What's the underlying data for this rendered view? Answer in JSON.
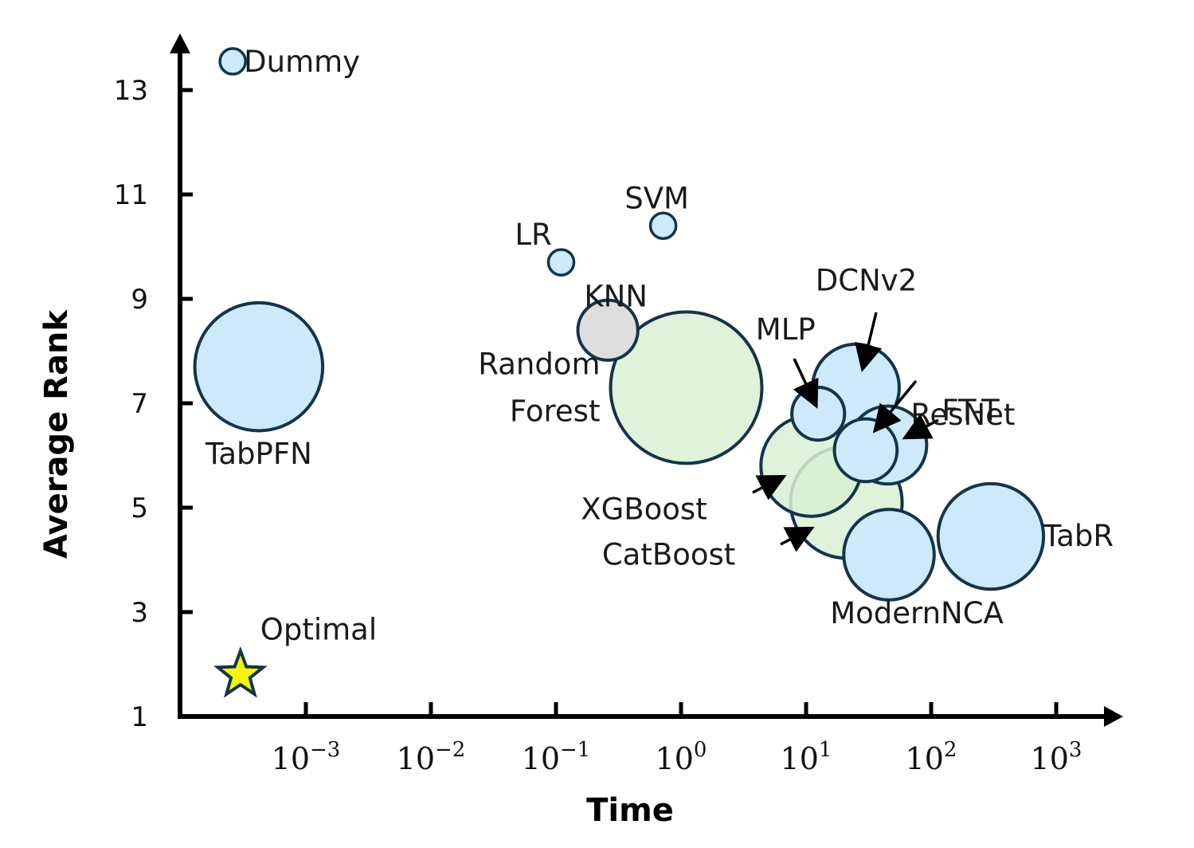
{
  "chart_data": {
    "type": "scatter",
    "xlabel": "Time",
    "ylabel": "Average Rank",
    "x_scale": "log",
    "x_ticks": [
      {
        "base": "10",
        "exp": "−3",
        "value": 0.001
      },
      {
        "base": "10",
        "exp": "−2",
        "value": 0.01
      },
      {
        "base": "10",
        "exp": "−1",
        "value": 0.1
      },
      {
        "base": "10",
        "exp": "0",
        "value": 1
      },
      {
        "base": "10",
        "exp": "1",
        "value": 10
      },
      {
        "base": "10",
        "exp": "2",
        "value": 100
      },
      {
        "base": "10",
        "exp": "3",
        "value": 1000
      }
    ],
    "y_ticks": [
      "1",
      "3",
      "5",
      "7",
      "9",
      "11",
      "13"
    ],
    "ylim": [
      1,
      13.6
    ],
    "xlim": [
      0.0001,
      10000
    ],
    "colors": {
      "deep": "#cdeafa",
      "tree": "#d9f0d3",
      "classic": "#dedede",
      "outline": "#14344a",
      "optimal": "#f5f50a"
    },
    "points": [
      {
        "name": "Dummy",
        "x": 0.00026,
        "y": 13.55,
        "size": 0.04,
        "group": "deep",
        "labels": [
          "Dummy"
        ]
      },
      {
        "name": "TabPFN",
        "x": 0.00042,
        "y": 7.7,
        "size": 1.0,
        "group": "deep",
        "labels": [
          "TabPFN"
        ]
      },
      {
        "name": "LR",
        "x": 0.11,
        "y": 9.7,
        "size": 0.04,
        "group": "deep",
        "labels": [
          "LR"
        ]
      },
      {
        "name": "SVM",
        "x": 0.72,
        "y": 10.4,
        "size": 0.04,
        "group": "deep",
        "labels": [
          "SVM"
        ]
      },
      {
        "name": "KNN",
        "x": 0.26,
        "y": 8.4,
        "size": 0.22,
        "group": "classic",
        "labels": [
          "KNN"
        ]
      },
      {
        "name": "Random Forest",
        "x": 1.1,
        "y": 7.3,
        "size": 1.4,
        "group": "tree",
        "labels": [
          "Random",
          "Forest"
        ]
      },
      {
        "name": "MLP",
        "x": 12.5,
        "y": 6.8,
        "size": 0.17,
        "group": "deep",
        "labels": [
          "MLP"
        ]
      },
      {
        "name": "DCNv2",
        "x": 25,
        "y": 7.3,
        "size": 0.46,
        "group": "deep",
        "labels": [
          "DCNv2"
        ]
      },
      {
        "name": "ResNet",
        "x": 30,
        "y": 6.1,
        "size": 0.24,
        "group": "deep",
        "labels": [
          "ResNet"
        ]
      },
      {
        "name": "FT-T",
        "x": 45,
        "y": 6.2,
        "size": 0.37,
        "group": "deep",
        "labels": [
          "FT-T"
        ]
      },
      {
        "name": "XGBoost",
        "x": 11,
        "y": 5.8,
        "size": 0.62,
        "group": "tree",
        "labels": [
          "XGBoost"
        ]
      },
      {
        "name": "CatBoost",
        "x": 21,
        "y": 5.1,
        "size": 0.76,
        "group": "tree",
        "labels": [
          "CatBoost"
        ]
      },
      {
        "name": "ModernNCA",
        "x": 46,
        "y": 4.1,
        "size": 0.5,
        "group": "deep",
        "labels": [
          "ModernNCA"
        ]
      },
      {
        "name": "TabR",
        "x": 300,
        "y": 4.45,
        "size": 0.68,
        "group": "deep",
        "labels": [
          "TabR"
        ]
      },
      {
        "name": "Optimal",
        "x": 0.0003,
        "y": 1.8,
        "size": 0.3,
        "group": "optimal",
        "labels": [
          "Optimal"
        ]
      }
    ]
  }
}
